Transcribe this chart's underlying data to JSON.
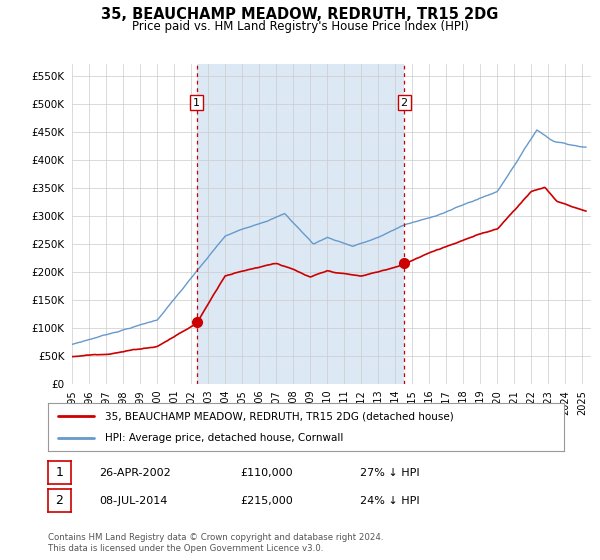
{
  "title": "35, BEAUCHAMP MEADOW, REDRUTH, TR15 2DG",
  "subtitle": "Price paid vs. HM Land Registry's House Price Index (HPI)",
  "ylim": [
    0,
    570000
  ],
  "yticks": [
    0,
    50000,
    100000,
    150000,
    200000,
    250000,
    300000,
    350000,
    400000,
    450000,
    500000,
    550000
  ],
  "sale1_date": 2002.32,
  "sale1_price": 110000,
  "sale1_label": "1",
  "sale2_date": 2014.52,
  "sale2_price": 215000,
  "sale2_label": "2",
  "red_line_color": "#cc0000",
  "blue_line_color": "#6699cc",
  "shade_color": "#dce9f5",
  "vline_color": "#cc0000",
  "legend_label_red": "35, BEAUCHAMP MEADOW, REDRUTH, TR15 2DG (detached house)",
  "legend_label_blue": "HPI: Average price, detached house, Cornwall",
  "table_row1": [
    "1",
    "26-APR-2002",
    "£110,000",
    "27% ↓ HPI"
  ],
  "table_row2": [
    "2",
    "08-JUL-2014",
    "£215,000",
    "24% ↓ HPI"
  ],
  "footnote": "Contains HM Land Registry data © Crown copyright and database right 2024.\nThis data is licensed under the Open Government Licence v3.0.",
  "background_color": "#ffffff",
  "grid_color": "#cccccc",
  "xlim_left": 1995,
  "xlim_right": 2025.5
}
